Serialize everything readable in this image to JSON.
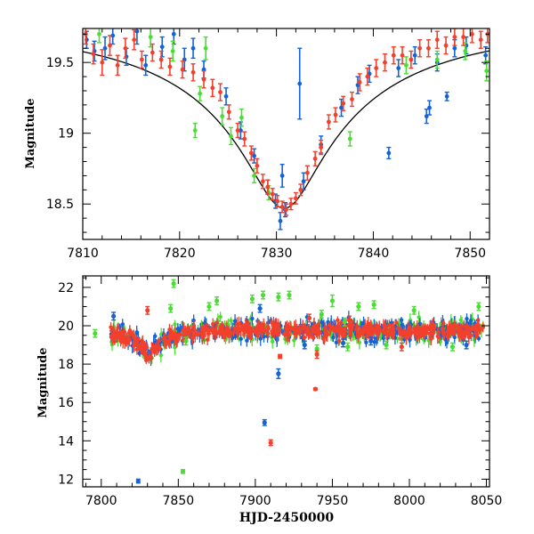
{
  "colors": {
    "blue": "#1463d6",
    "red": "#f2402d",
    "green": "#4ade34",
    "fit": "#000000"
  },
  "chart_data": [
    {
      "type": "scatter",
      "panel": "top",
      "title": "",
      "xlabel": "",
      "ylabel": "Magnitude",
      "xlim": [
        7810,
        7852
      ],
      "ylim": [
        19.74,
        18.25
      ],
      "y_inverted": true,
      "xticks": [
        7810,
        7820,
        7830,
        7840,
        7850
      ],
      "yticks": [
        18.5,
        19,
        19.5
      ],
      "xtick_labels": [
        "7810",
        "7820",
        "7830",
        "7840",
        "7850"
      ],
      "ytick_labels": [
        "18.5",
        "19",
        "19.5"
      ],
      "fit_curve": {
        "type": "line",
        "peak_x": 7830.8,
        "peak_mag": 18.47,
        "base_mag": 19.76,
        "u0": 0.12,
        "tE_days": 28
      },
      "series": [
        {
          "color_key": "blue",
          "points": [
            [
              7810.4,
              19.66,
              0.06
            ],
            [
              7811.2,
              19.58,
              0.07
            ],
            [
              7812.3,
              19.6,
              0.08
            ],
            [
              7813.1,
              19.69,
              0.06
            ],
            [
              7814.5,
              19.54,
              0.06
            ],
            [
              7815.6,
              19.72,
              0.09
            ],
            [
              7816.5,
              19.48,
              0.07
            ],
            [
              7818.2,
              19.61,
              0.07
            ],
            [
              7819.4,
              19.7,
              0.07
            ],
            [
              7820.5,
              19.52,
              0.08
            ],
            [
              7821.4,
              19.6,
              0.07
            ],
            [
              7822.5,
              19.45,
              0.06
            ],
            [
              7824.8,
              19.26,
              0.06
            ],
            [
              7826.3,
              19.02,
              0.06
            ],
            [
              7827.7,
              18.84,
              0.05
            ],
            [
              7829.1,
              18.62,
              0.05
            ],
            [
              7829.9,
              18.52,
              0.05
            ],
            [
              7830.4,
              18.38,
              0.06
            ],
            [
              7830.6,
              18.7,
              0.08
            ],
            [
              7830.9,
              18.46,
              0.05
            ],
            [
              7832.4,
              19.35,
              0.25
            ],
            [
              7832.8,
              18.66,
              0.06
            ],
            [
              7834.6,
              18.92,
              0.06
            ],
            [
              7836.7,
              19.18,
              0.06
            ],
            [
              7838.4,
              19.34,
              0.06
            ],
            [
              7839.6,
              19.42,
              0.06
            ],
            [
              7841.6,
              18.86,
              0.04
            ],
            [
              7842.6,
              19.46,
              0.06
            ],
            [
              7844.3,
              19.55,
              0.06
            ],
            [
              7845.5,
              19.12,
              0.05
            ],
            [
              7845.8,
              19.18,
              0.05
            ],
            [
              7846.6,
              19.5,
              0.06
            ],
            [
              7847.6,
              19.26,
              0.03
            ],
            [
              7848.4,
              19.6,
              0.06
            ],
            [
              7849.6,
              19.62,
              0.06
            ],
            [
              7851.6,
              19.55,
              0.06
            ]
          ]
        },
        {
          "color_key": "green",
          "points": [
            [
              7811.7,
              19.7,
              0.06
            ],
            [
              7817.0,
              19.68,
              0.07
            ],
            [
              7819.3,
              19.58,
              0.07
            ],
            [
              7821.6,
              19.02,
              0.05
            ],
            [
              7822.1,
              19.28,
              0.05
            ],
            [
              7822.7,
              19.6,
              0.08
            ],
            [
              7824.4,
              19.12,
              0.06
            ],
            [
              7825.3,
              18.98,
              0.06
            ],
            [
              7826.4,
              19.11,
              0.06
            ],
            [
              7827.7,
              18.7,
              0.05
            ],
            [
              7829.2,
              18.58,
              0.05
            ],
            [
              7837.6,
              18.96,
              0.05
            ],
            [
              7843.4,
              19.48,
              0.06
            ],
            [
              7846.6,
              19.52,
              0.06
            ],
            [
              7849.5,
              19.58,
              0.06
            ],
            [
              7851.7,
              19.44,
              0.07
            ]
          ]
        },
        {
          "color_key": "red",
          "points": [
            [
              7810.3,
              19.7,
              0.07
            ],
            [
              7811.1,
              19.56,
              0.07
            ],
            [
              7812.0,
              19.5,
              0.09
            ],
            [
              7812.8,
              19.62,
              0.07
            ],
            [
              7813.6,
              19.48,
              0.07
            ],
            [
              7814.4,
              19.6,
              0.07
            ],
            [
              7815.3,
              19.66,
              0.07
            ],
            [
              7816.1,
              19.52,
              0.06
            ],
            [
              7817.2,
              19.57,
              0.06
            ],
            [
              7818.1,
              19.52,
              0.06
            ],
            [
              7819.0,
              19.47,
              0.06
            ],
            [
              7820.3,
              19.45,
              0.06
            ],
            [
              7821.4,
              19.43,
              0.06
            ],
            [
              7822.5,
              19.38,
              0.06
            ],
            [
              7823.4,
              19.32,
              0.06
            ],
            [
              7824.2,
              19.29,
              0.06
            ],
            [
              7825.1,
              19.15,
              0.05
            ],
            [
              7826.0,
              19.02,
              0.05
            ],
            [
              7826.7,
              18.96,
              0.05
            ],
            [
              7827.4,
              18.86,
              0.05
            ],
            [
              7828.0,
              18.77,
              0.05
            ],
            [
              7828.6,
              18.66,
              0.05
            ],
            [
              7829.1,
              18.62,
              0.05
            ],
            [
              7829.6,
              18.57,
              0.04
            ],
            [
              7830.1,
              18.52,
              0.04
            ],
            [
              7830.6,
              18.48,
              0.04
            ],
            [
              7831.0,
              18.46,
              0.04
            ],
            [
              7831.5,
              18.5,
              0.04
            ],
            [
              7832.0,
              18.54,
              0.04
            ],
            [
              7832.5,
              18.6,
              0.04
            ],
            [
              7833.2,
              18.72,
              0.05
            ],
            [
              7834.0,
              18.82,
              0.05
            ],
            [
              7834.6,
              18.9,
              0.05
            ],
            [
              7835.4,
              19.08,
              0.05
            ],
            [
              7836.1,
              19.13,
              0.05
            ],
            [
              7836.9,
              19.21,
              0.05
            ],
            [
              7837.8,
              19.24,
              0.05
            ],
            [
              7838.6,
              19.36,
              0.06
            ],
            [
              7839.4,
              19.4,
              0.06
            ],
            [
              7840.3,
              19.46,
              0.06
            ],
            [
              7841.2,
              19.5,
              0.06
            ],
            [
              7842.1,
              19.55,
              0.06
            ],
            [
              7843.0,
              19.55,
              0.06
            ],
            [
              7843.9,
              19.52,
              0.06
            ],
            [
              7844.8,
              19.6,
              0.06
            ],
            [
              7845.7,
              19.6,
              0.06
            ],
            [
              7846.6,
              19.66,
              0.06
            ],
            [
              7847.5,
              19.62,
              0.06
            ],
            [
              7848.4,
              19.68,
              0.06
            ],
            [
              7849.3,
              19.68,
              0.06
            ],
            [
              7850.2,
              19.7,
              0.06
            ],
            [
              7851.1,
              19.66,
              0.06
            ],
            [
              7851.8,
              19.7,
              0.06
            ]
          ]
        }
      ]
    },
    {
      "type": "scatter",
      "panel": "bottom",
      "title": "",
      "xlabel": "HJD-2450000",
      "ylabel": "Magnitude",
      "xlim": [
        7788,
        8052
      ],
      "ylim": [
        22.6,
        11.6
      ],
      "y_inverted": true,
      "xticks": [
        7800,
        7850,
        7900,
        7950,
        8000,
        8050
      ],
      "yticks": [
        12,
        14,
        16,
        18,
        20,
        22
      ],
      "xtick_labels": [
        "7800",
        "7850",
        "7900",
        "7950",
        "8000",
        "8050"
      ],
      "ytick_labels": [
        "12",
        "14",
        "16",
        "18",
        "20",
        "22"
      ],
      "baseline_mag": 19.76,
      "event_peak_mag": 18.47,
      "event_peak_x": 7830.8,
      "baseline_x_range": [
        7806,
        8048
      ],
      "series": [
        {
          "color_key": "blue",
          "outliers": [
            [
              7824,
              11.9,
              0.1
            ],
            [
              7906,
              14.95,
              0.15
            ],
            [
              7915,
              17.5,
              0.25
            ],
            [
              7932,
              19.0,
              0.2
            ],
            [
              7957,
              19.1,
              0.2
            ],
            [
              7975,
              19.2,
              0.2
            ],
            [
              8037,
              19.0,
              0.2
            ],
            [
              7808,
              20.5,
              0.2
            ],
            [
              7903,
              20.9,
              0.2
            ]
          ]
        },
        {
          "color_key": "green",
          "outliers": [
            [
              7853,
              12.4,
              0.1
            ],
            [
              7796,
              19.6,
              0.2
            ],
            [
              7845,
              20.9,
              0.2
            ],
            [
              7847,
              22.2,
              0.2
            ],
            [
              7870,
              21.0,
              0.2
            ],
            [
              7875,
              21.3,
              0.2
            ],
            [
              7898,
              21.4,
              0.2
            ],
            [
              7905,
              21.6,
              0.2
            ],
            [
              7915,
              21.5,
              0.2
            ],
            [
              7922,
              21.6,
              0.2
            ],
            [
              7943,
              20.6,
              0.2
            ],
            [
              7950,
              21.3,
              0.3
            ],
            [
              7958,
              20.2,
              0.2
            ],
            [
              7967,
              21.0,
              0.2
            ],
            [
              7977,
              21.1,
              0.2
            ],
            [
              8003,
              20.8,
              0.2
            ],
            [
              8045,
              21.0,
              0.2
            ],
            [
              7940,
              18.8,
              0.2
            ],
            [
              7960,
              18.9,
              0.2
            ],
            [
              7985,
              19.0,
              0.2
            ],
            [
              8028,
              18.9,
              0.2
            ],
            [
              7855,
              19.2,
              0.2
            ]
          ]
        },
        {
          "color_key": "red",
          "outliers": [
            [
              7910,
              13.9,
              0.15
            ],
            [
              7939,
              16.7,
              0.05
            ],
            [
              7916,
              18.4,
              0.1
            ],
            [
              7940,
              18.5,
              0.2
            ],
            [
              7830,
              20.8,
              0.2
            ],
            [
              7935,
              20.4,
              0.2
            ],
            [
              7961,
              20.3,
              0.2
            ],
            [
              7995,
              18.9,
              0.2
            ]
          ]
        }
      ]
    }
  ]
}
